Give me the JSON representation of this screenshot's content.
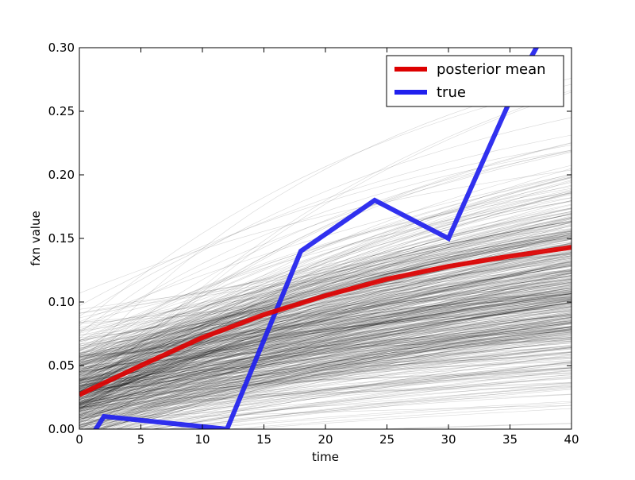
{
  "chart_data": {
    "type": "line",
    "xlabel": "time",
    "ylabel": "fxn value",
    "xlim": [
      0,
      40
    ],
    "ylim": [
      0,
      0.3
    ],
    "x_ticks": [
      0,
      5,
      10,
      15,
      20,
      25,
      30,
      35,
      40
    ],
    "x_tick_labels": [
      "0",
      "5",
      "10",
      "15",
      "20",
      "25",
      "30",
      "35",
      "40"
    ],
    "y_ticks": [
      0,
      0.05,
      0.1,
      0.15,
      0.2,
      0.25,
      0.3
    ],
    "y_tick_labels": [
      "0.00",
      "0.05",
      "0.10",
      "0.15",
      "0.20",
      "0.25",
      "0.30"
    ],
    "grid": false,
    "legend": {
      "location": "top-right",
      "entries": [
        {
          "label": "posterior mean",
          "color": "#dd0000"
        },
        {
          "label": "true",
          "color": "#2020ee"
        }
      ]
    },
    "series": [
      {
        "name": "posterior mean",
        "color": "#dd0000",
        "x": [
          0,
          5,
          10,
          15,
          20,
          25,
          30,
          35,
          40
        ],
        "y": [
          0.027,
          0.05,
          0.072,
          0.09,
          0.105,
          0.118,
          0.128,
          0.136,
          0.143
        ]
      },
      {
        "name": "true",
        "color": "#2020ee",
        "x": [
          0,
          2,
          12,
          18,
          24,
          30,
          36,
          40
        ],
        "y": [
          -0.02,
          0.01,
          0.0,
          0.14,
          0.18,
          0.15,
          0.28,
          0.35
        ]
      }
    ],
    "samples": {
      "color": "#000000",
      "description_count": 600,
      "form": "a*(1-exp(-x/b))+c",
      "a_range": [
        0.05,
        0.5
      ],
      "b_range": [
        20,
        120
      ],
      "c_range": [
        -0.01,
        0.2
      ]
    }
  }
}
